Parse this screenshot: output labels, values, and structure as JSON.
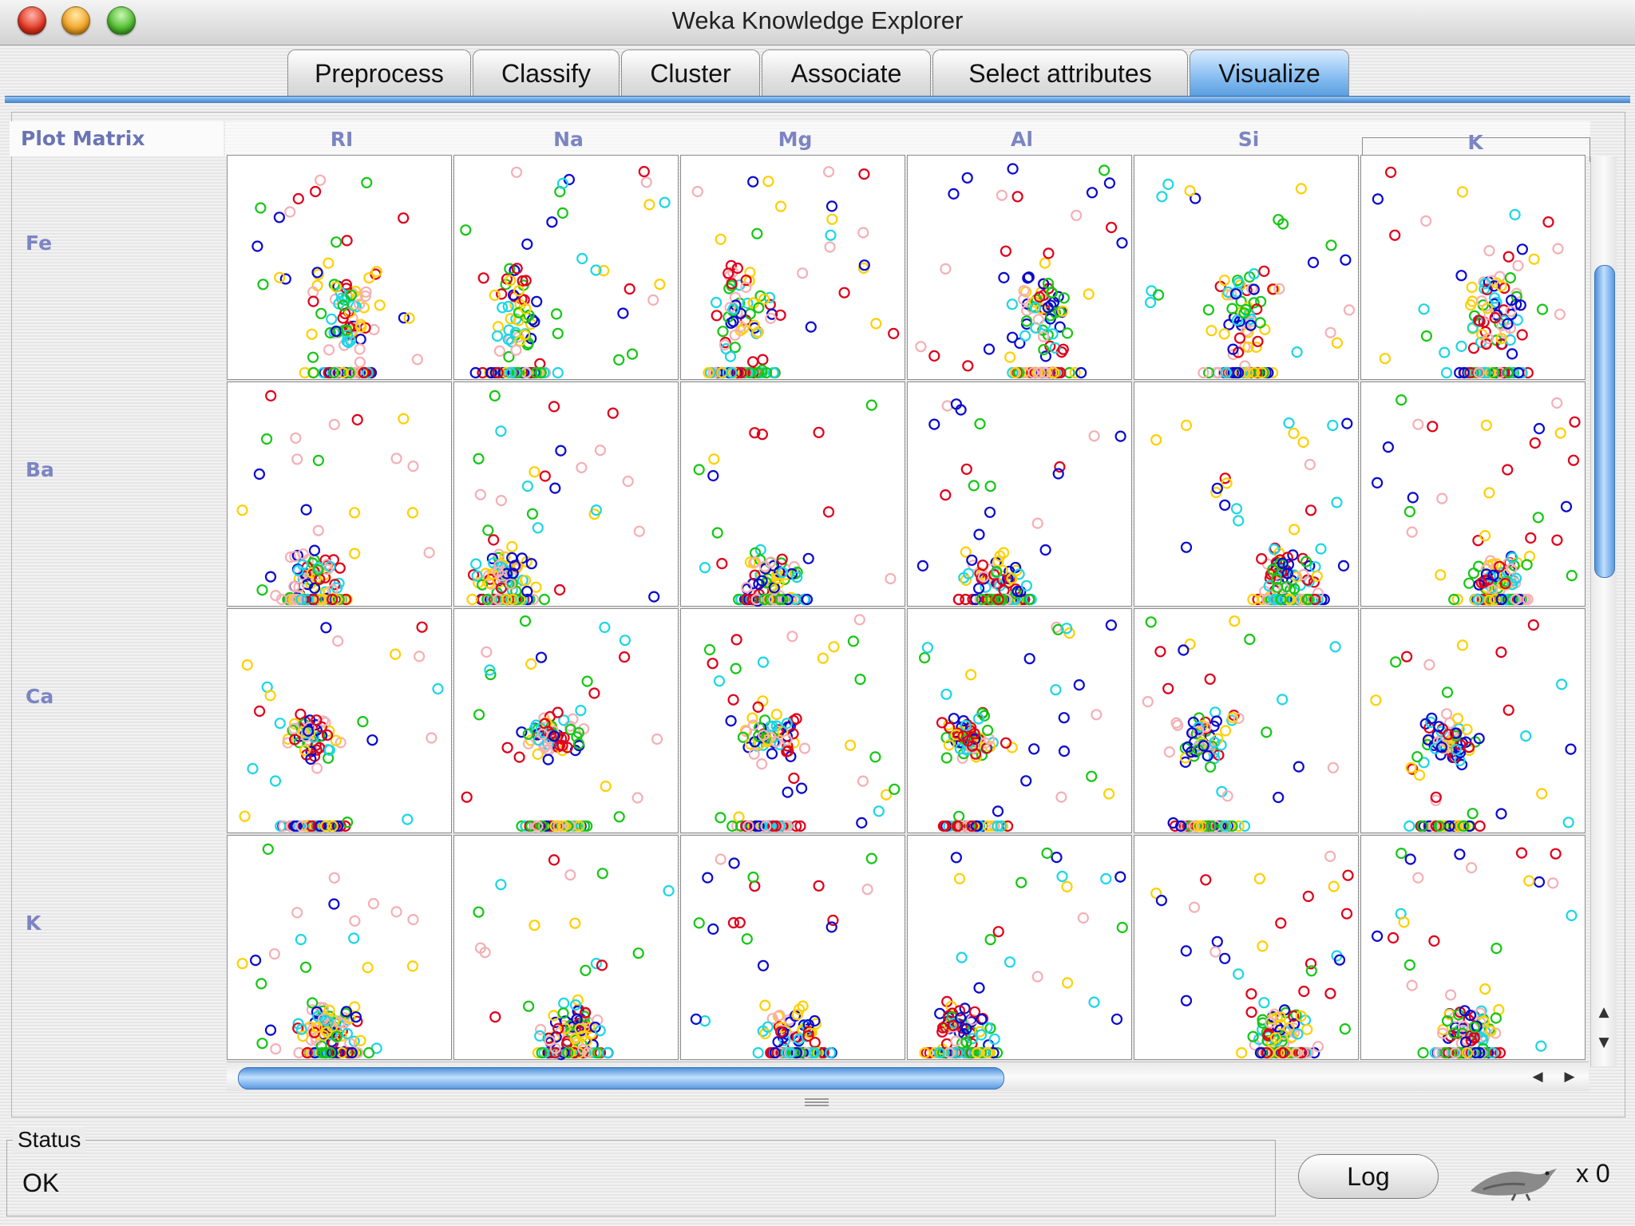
{
  "window": {
    "title": "Weka Knowledge Explorer"
  },
  "tabs": [
    {
      "label": "Preprocess",
      "active": false
    },
    {
      "label": "Classify",
      "active": false
    },
    {
      "label": "Cluster",
      "active": false
    },
    {
      "label": "Associate",
      "active": false
    },
    {
      "label": "Select attributes",
      "active": false
    },
    {
      "label": "Visualize",
      "active": true
    }
  ],
  "plot_matrix": {
    "label": "Plot Matrix",
    "columns": [
      "RI",
      "Na",
      "Mg",
      "Al",
      "Si",
      "K"
    ],
    "rows": [
      "Fe",
      "Ba",
      "Ca",
      "K"
    ],
    "class_colors": [
      "#0a0ad0",
      "#e0001a",
      "#16c716",
      "#1cd6e6",
      "#ffd000",
      "#f4b0b6"
    ]
  },
  "status": {
    "legend": "Status",
    "text": "OK"
  },
  "log_button": {
    "label": "Log"
  },
  "task_count": "x 0",
  "icons": {
    "close": "close-light-icon",
    "minimize": "minimize-light-icon",
    "zoom": "zoom-light-icon",
    "weka": "weka-bird-icon",
    "scroll_up": "scroll-up-arrow-icon",
    "scroll_down": "scroll-down-arrow-icon",
    "scroll_left": "scroll-left-arrow-icon",
    "scroll_right": "scroll-right-arrow-icon"
  }
}
